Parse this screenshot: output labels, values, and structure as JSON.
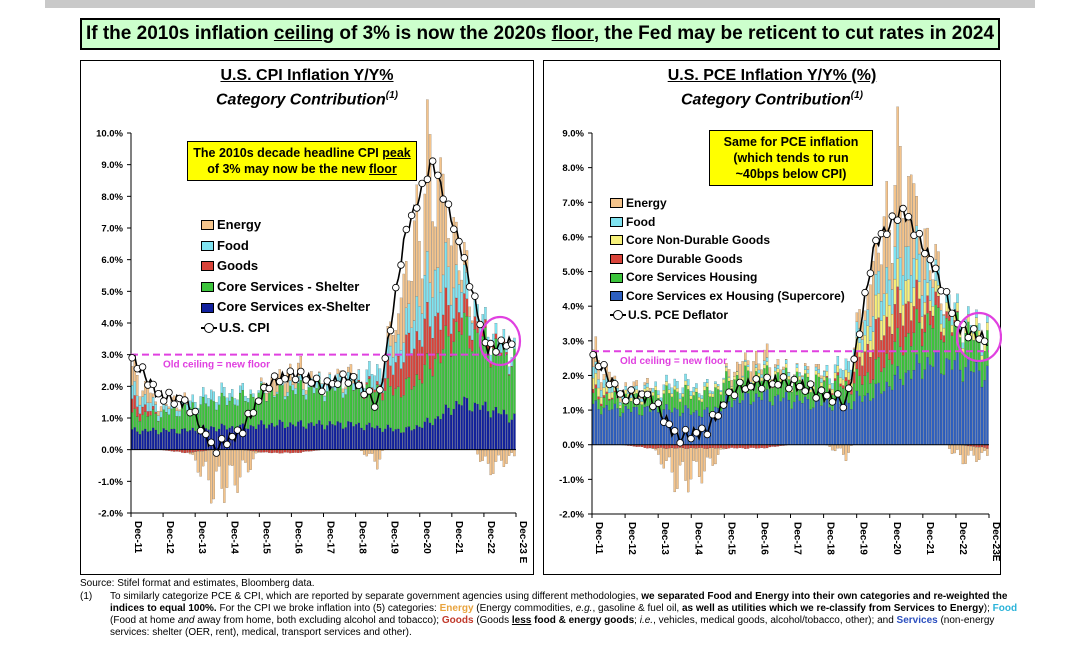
{
  "headline": {
    "pre": "If the 2010s inflation ",
    "u1": "ceiling",
    "mid": " of 3% is now the 2020s ",
    "u2": "floor",
    "post": ", the Fed may be reticent to cut rates in 2024"
  },
  "source": "Source: Stifel format and estimates, Bloomberg data.",
  "footnote": {
    "num": "(1)",
    "p1": "To similarly categorize PCE & CPI, which are reported by separate government agencies using different methodologies, ",
    "b1": "we separated Food and Energy into their own categories and re-weighted the indices to equal 100%.",
    "p2": " For the CPI we broke inflation into (5) categories: ",
    "energy": "Energy",
    "p3": " (Energy commodities, ",
    "eg": "e.g.",
    "p4": ", gasoline & fuel oil, ",
    "b2": "as well as utilities which we re-classify from Services to Energy",
    "p5": "); ",
    "food": "Food",
    "p6": " (Food at home ",
    "and": "and",
    "p7": " away from home, both excluding alcohol and tobacco); ",
    "goods": "Goods",
    "p8": " (Goods ",
    "less": "less",
    "b3": " food & energy goods",
    "p9": "; ",
    "ie": "i.e.",
    "p10": ", vehicles, medical goods, alcohol/tobacco, other); and ",
    "services": "Services",
    "p11": " (non-energy services: shelter (OER, rent), medical, transport services and other)."
  },
  "colors": {
    "energy": "#f4c48c",
    "food": "#7fe3f0",
    "core_nondurable": "#f6f07a",
    "goods": "#d9443a",
    "shelter": "#3cc43c",
    "services_ex_shelter": "#10209e",
    "supercore": "#2d5fc0",
    "headline_line": "#000000",
    "ceiling_line": "#e040e0",
    "note_bg": "#ffff00"
  },
  "chart_data": [
    {
      "type": "bar",
      "stacked": true,
      "title": "U.S. CPI Inflation Y/Y%",
      "subtitle": "Category Contribution",
      "subtitle_sup": "(1)",
      "ylim": [
        -2.0,
        10.0
      ],
      "yticks": [
        "-2.0%",
        "-1.0%",
        "0.0%",
        "1.0%",
        "2.0%",
        "3.0%",
        "4.0%",
        "5.0%",
        "6.0%",
        "7.0%",
        "8.0%",
        "9.0%",
        "10.0%"
      ],
      "ytick_values": [
        -2,
        -1,
        0,
        1,
        2,
        3,
        4,
        5,
        6,
        7,
        8,
        9,
        10
      ],
      "xticks": [
        "Dec-11",
        "Dec-12",
        "Dec-13",
        "Dec-14",
        "Dec-15",
        "Dec-16",
        "Dec-17",
        "Dec-18",
        "Dec-19",
        "Dec-20",
        "Dec-21",
        "Dec-22",
        "Dec-23 E"
      ],
      "series": [
        {
          "name": "Core Services ex-Shelter",
          "key": "svc",
          "values": [
            0.6,
            0.6,
            0.6,
            0.7,
            0.7,
            0.8,
            0.8,
            0.8,
            0.8,
            0.7,
            0.6,
            0.9,
            1.5,
            1.3,
            1.0
          ]
        },
        {
          "name": "Core Services - Shelter",
          "key": "shl",
          "values": [
            0.5,
            0.5,
            0.7,
            0.8,
            0.9,
            1.0,
            1.1,
            1.1,
            1.2,
            1.2,
            1.3,
            1.8,
            2.4,
            2.0,
            1.8
          ]
        },
        {
          "name": "Goods",
          "key": "gds",
          "values": [
            0.4,
            0.0,
            -0.1,
            0.0,
            0.0,
            -0.1,
            -0.1,
            0.0,
            0.0,
            0.1,
            1.2,
            1.4,
            0.6,
            0.2,
            0.0
          ]
        },
        {
          "name": "Food",
          "key": "food",
          "values": [
            0.4,
            0.2,
            0.2,
            0.3,
            0.2,
            0.0,
            0.2,
            0.2,
            0.2,
            0.5,
            0.7,
            1.5,
            0.9,
            0.3,
            0.3
          ]
        },
        {
          "name": "Energy",
          "key": "eng",
          "values": [
            0.6,
            0.1,
            0.1,
            -1.2,
            -0.8,
            0.4,
            0.4,
            0.0,
            0.2,
            -0.4,
            1.5,
            3.5,
            0.8,
            -0.6,
            -0.2
          ]
        }
      ],
      "line": {
        "name": "U.S. CPI",
        "x": [
          0,
          1,
          2,
          3,
          4,
          5,
          6,
          7,
          8,
          9,
          10,
          11,
          12,
          13,
          14
        ],
        "values": [
          2.9,
          1.7,
          1.5,
          0.0,
          0.6,
          2.1,
          2.4,
          2.0,
          2.3,
          1.4,
          6.8,
          9.1,
          6.5,
          3.2,
          3.4
        ]
      },
      "ceiling": {
        "value": 3.0,
        "label": "Old ceiling = new floor"
      },
      "legend": [
        "Energy",
        "Food",
        "Goods",
        "Core Services - Shelter",
        "Core Services ex-Shelter",
        "U.S. CPI"
      ],
      "note": {
        "pre": "The 2010s decade headline CPI ",
        "u1": "peak",
        "mid": " of 3% may now be the new ",
        "u2": "floor"
      }
    },
    {
      "type": "bar",
      "stacked": true,
      "title": "U.S. PCE Inflation Y/Y% (%)",
      "subtitle": "Category Contribution",
      "subtitle_sup": "(1)",
      "ylim": [
        -2.0,
        9.0
      ],
      "yticks": [
        "-2.0%",
        "-1.0%",
        "0.0%",
        "1.0%",
        "2.0%",
        "3.0%",
        "4.0%",
        "5.0%",
        "6.0%",
        "7.0%",
        "8.0%",
        "9.0%"
      ],
      "ytick_values": [
        -2,
        -1,
        0,
        1,
        2,
        3,
        4,
        5,
        6,
        7,
        8,
        9
      ],
      "xticks": [
        "Dec-11",
        "Dec-12",
        "Dec-13",
        "Dec-14",
        "Dec-15",
        "Dec-16",
        "Dec-17",
        "Dec-18",
        "Dec-19",
        "Dec-20",
        "Dec-21",
        "Dec-22",
        "Dec-23E"
      ],
      "series": [
        {
          "name": "Core Services ex Housing (Supercore)",
          "key": "sup",
          "values": [
            1.1,
            1.0,
            1.0,
            1.0,
            0.9,
            1.3,
            1.4,
            1.3,
            1.2,
            1.2,
            1.5,
            2.0,
            2.4,
            2.3,
            2.0
          ]
        },
        {
          "name": "Core Services Housing",
          "key": "hou",
          "values": [
            0.3,
            0.3,
            0.4,
            0.5,
            0.5,
            0.6,
            0.6,
            0.6,
            0.6,
            0.5,
            0.6,
            1.0,
            1.2,
            1.0,
            0.9
          ]
        },
        {
          "name": "Core Durable Goods",
          "key": "dur",
          "values": [
            0.1,
            0.0,
            -0.1,
            -0.1,
            -0.1,
            -0.1,
            -0.1,
            0.0,
            0.0,
            0.1,
            1.0,
            1.0,
            0.4,
            0.0,
            -0.1
          ]
        },
        {
          "name": "Core Non-Durable Goods",
          "key": "ndu",
          "values": [
            0.3,
            0.1,
            0.1,
            0.1,
            0.1,
            0.1,
            0.1,
            0.1,
            0.1,
            0.2,
            0.6,
            0.7,
            0.3,
            0.2,
            0.2
          ]
        },
        {
          "name": "Food",
          "key": "food",
          "values": [
            0.3,
            0.1,
            0.1,
            0.2,
            0.1,
            0.0,
            0.1,
            0.1,
            0.1,
            0.3,
            0.5,
            1.0,
            0.6,
            0.2,
            0.2
          ]
        },
        {
          "name": "Energy",
          "key": "eng",
          "values": [
            0.5,
            0.1,
            0.1,
            -0.9,
            -0.6,
            0.3,
            0.3,
            0.0,
            0.1,
            -0.3,
            1.1,
            2.4,
            0.5,
            -0.4,
            -0.2
          ]
        }
      ],
      "line": {
        "name": "U.S. PCE Deflator",
        "x": [
          0,
          1,
          2,
          3,
          4,
          5,
          6,
          7,
          8,
          9,
          10,
          11,
          12,
          13,
          14
        ],
        "values": [
          2.6,
          1.4,
          1.4,
          0.2,
          0.4,
          1.6,
          1.8,
          1.8,
          1.5,
          1.2,
          5.8,
          6.8,
          5.3,
          3.4,
          3.0
        ]
      },
      "ceiling": {
        "value": 2.7,
        "label": "Old ceiling = new floor"
      },
      "legend": [
        "Energy",
        "Food",
        "Core Non-Durable Goods",
        "Core Durable Goods",
        "Core Services Housing",
        "Core Services ex Housing (Supercore)",
        "U.S. PCE Deflator"
      ],
      "note": {
        "l1": "Same for PCE inflation",
        "l2": "(which tends to run",
        "l3": "~40bps below CPI)"
      }
    }
  ]
}
